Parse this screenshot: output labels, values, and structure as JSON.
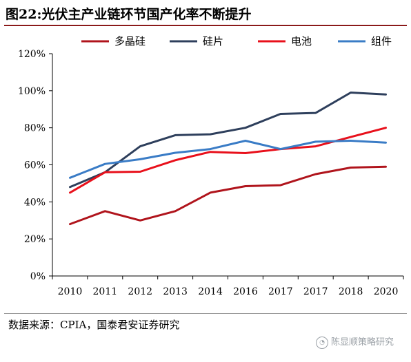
{
  "figure_title": "图22:光伏主产业链环节国产化率不断提升",
  "source_note": "数据来源：CPIA，国泰君安证券研究",
  "watermark": "陈显顺策略研究",
  "watermark_icon": "wechat-icon",
  "chart_data": {
    "type": "line",
    "title": "",
    "xlabel": "",
    "ylabel": "",
    "categories": [
      "2010",
      "2011",
      "2012",
      "2013",
      "2014",
      "2016",
      "2017",
      "2017",
      "2018",
      "2020"
    ],
    "y_ticks": [
      "0%",
      "20%",
      "40%",
      "60%",
      "80%",
      "100%",
      "120%"
    ],
    "ylim": [
      0,
      1.2
    ],
    "legend_position": "top",
    "grid": false,
    "series": [
      {
        "name": "多晶硅",
        "color": "#b0141c",
        "values": [
          0.28,
          0.35,
          0.3,
          0.35,
          0.45,
          0.485,
          0.49,
          0.55,
          0.585,
          0.59
        ]
      },
      {
        "name": "硅片",
        "color": "#2e3f5c",
        "values": [
          0.48,
          0.56,
          0.7,
          0.76,
          0.765,
          0.8,
          0.875,
          0.88,
          0.99,
          0.98
        ]
      },
      {
        "name": "电池",
        "color": "#e8101b",
        "values": [
          0.45,
          0.56,
          0.563,
          0.625,
          0.67,
          0.663,
          0.685,
          0.7,
          0.75,
          0.8
        ]
      },
      {
        "name": "组件",
        "color": "#3a7cc6",
        "values": [
          0.53,
          0.605,
          0.63,
          0.665,
          0.685,
          0.73,
          0.685,
          0.725,
          0.73,
          0.72
        ]
      }
    ]
  }
}
